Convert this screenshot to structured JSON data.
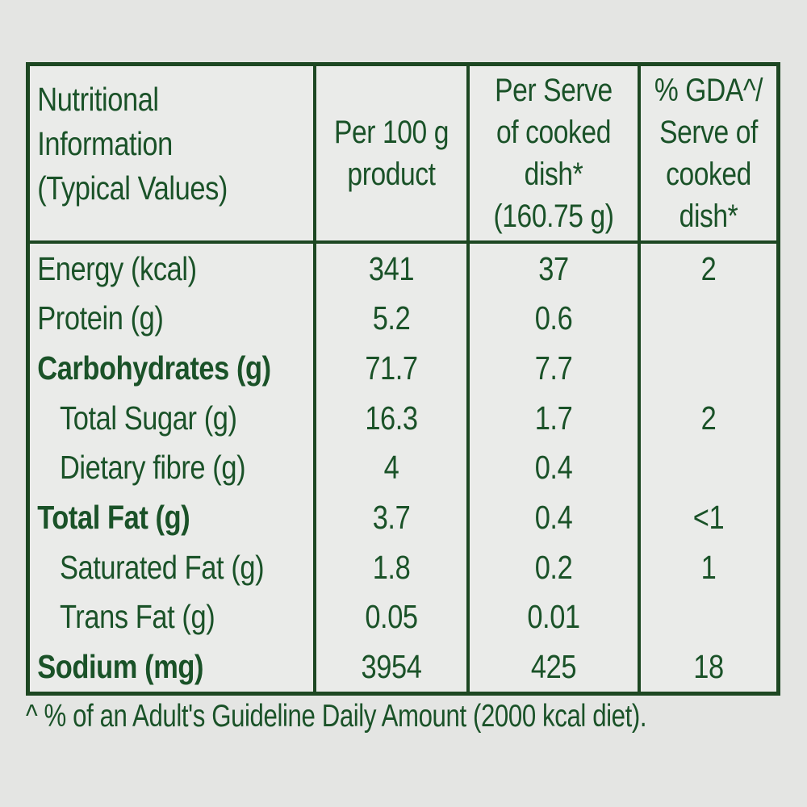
{
  "colors": {
    "green": "#1a5228",
    "border_green": "#1d4722",
    "page_bg": "#e4e5e3",
    "panel_bg": "#eaebe9"
  },
  "table": {
    "header": {
      "col1_lines": [
        "Nutritional",
        "Information",
        "(Typical Values)"
      ],
      "col2_lines": [
        "Per 100 g",
        "product"
      ],
      "col3_lines": [
        "Per Serve",
        "of cooked",
        "dish*",
        "(160.75 g)"
      ],
      "col4_lines": [
        "% GDA^/",
        "Serve of",
        "cooked",
        "dish*"
      ]
    },
    "rows": [
      {
        "label": "Energy (kcal)",
        "per_100g": "341",
        "per_serve": "37",
        "gda_percent": "2"
      },
      {
        "label": "Protein (g)",
        "per_100g": "5.2",
        "per_serve": "0.6",
        "gda_percent": ""
      },
      {
        "label": "Carbohydrates (g)",
        "per_100g": "71.7",
        "per_serve": "7.7",
        "gda_percent": ""
      },
      {
        "label": "Total Sugar (g)",
        "per_100g": "16.3",
        "per_serve": "1.7",
        "gda_percent": "2"
      },
      {
        "label": "Dietary fibre (g)",
        "per_100g": "4",
        "per_serve": "0.4",
        "gda_percent": ""
      },
      {
        "label": "Total Fat (g)",
        "per_100g": "3.7",
        "per_serve": "0.4",
        "gda_percent": "<1"
      },
      {
        "label": "Saturated Fat (g)",
        "per_100g": "1.8",
        "per_serve": "0.2",
        "gda_percent": "1"
      },
      {
        "label": "Trans Fat (g)",
        "per_100g": "0.05",
        "per_serve": "0.01",
        "gda_percent": ""
      },
      {
        "label": "Sodium (mg)",
        "per_100g": "3954",
        "per_serve": "425",
        "gda_percent": "18"
      }
    ]
  },
  "footnote": "^ % of an Adult's Guideline Daily Amount (2000 kcal diet)."
}
